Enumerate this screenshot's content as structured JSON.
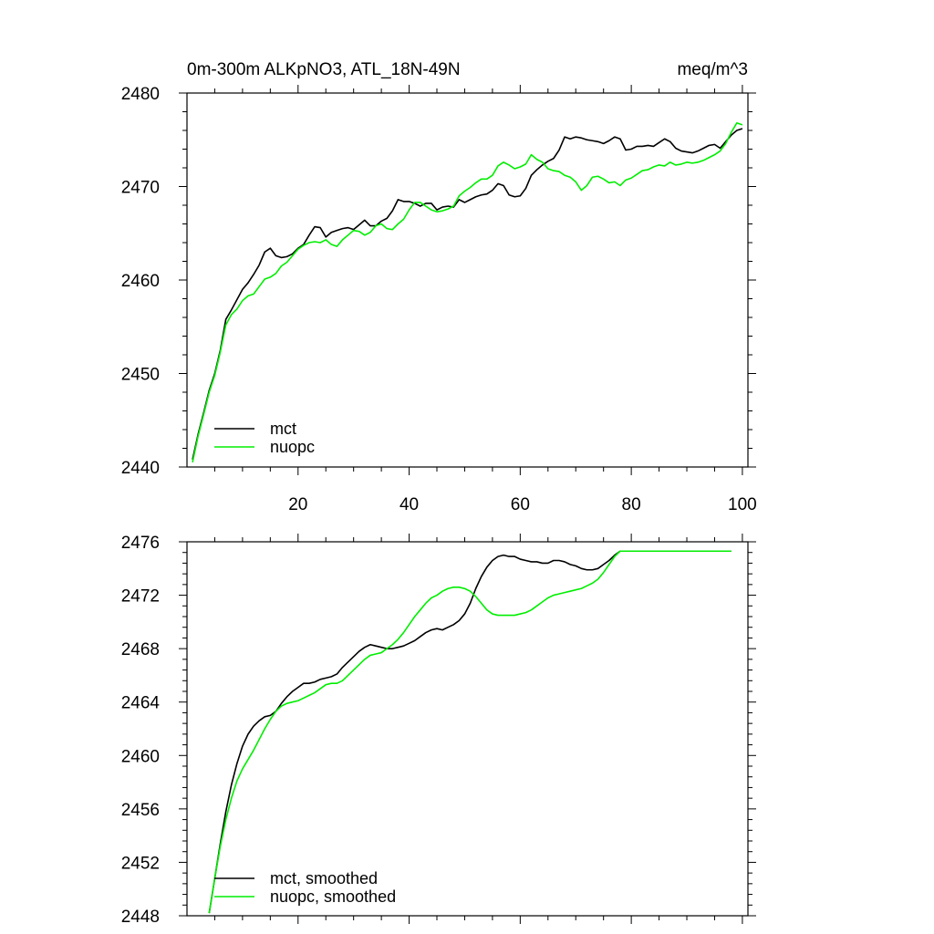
{
  "colors": {
    "mct": "#000000",
    "nuopc": "#00ee00"
  },
  "chart_data": [
    {
      "type": "line",
      "title": "0m-300m ALKpNO3, ATL_18N-49N",
      "units": "meq/m^3",
      "xlim": [
        0,
        101
      ],
      "ylim": [
        2440,
        2480
      ],
      "xticks": [
        20,
        40,
        60,
        80,
        100
      ],
      "xtick_labels": [
        "20",
        "40",
        "60",
        "80",
        "100"
      ],
      "yticks": [
        2440,
        2450,
        2460,
        2470,
        2480
      ],
      "ytick_labels": [
        "2440",
        "2450",
        "2460",
        "2470",
        "2480"
      ],
      "legend_position": "bottom-left",
      "grid": false,
      "x": [
        1,
        2,
        3,
        4,
        5,
        6,
        7,
        8,
        9,
        10,
        11,
        12,
        13,
        14,
        15,
        16,
        17,
        18,
        19,
        20,
        21,
        22,
        23,
        24,
        25,
        26,
        27,
        28,
        29,
        30,
        31,
        32,
        33,
        34,
        35,
        36,
        37,
        38,
        39,
        40,
        41,
        42,
        43,
        44,
        45,
        46,
        47,
        48,
        49,
        50,
        51,
        52,
        53,
        54,
        55,
        56,
        57,
        58,
        59,
        60,
        61,
        62,
        63,
        64,
        65,
        66,
        67,
        68,
        69,
        70,
        71,
        72,
        73,
        74,
        75,
        76,
        77,
        78,
        79,
        80,
        81,
        82,
        83,
        84,
        85,
        86,
        87,
        88,
        89,
        90,
        91,
        92,
        93,
        94,
        95,
        96,
        97,
        98,
        99,
        100
      ],
      "series": [
        {
          "name": "mct",
          "color": "#000000",
          "values": [
            2440.8,
            2443.5,
            2445.8,
            2448.2,
            2450.0,
            2452.5,
            2455.8,
            2456.8,
            2457.9,
            2459.0,
            2459.7,
            2460.6,
            2461.6,
            2463.0,
            2463.4,
            2462.6,
            2462.4,
            2462.5,
            2462.8,
            2463.4,
            2463.8,
            2464.8,
            2465.7,
            2465.6,
            2464.6,
            2465.1,
            2465.3,
            2465.5,
            2465.6,
            2465.4,
            2465.9,
            2466.4,
            2465.8,
            2465.8,
            2466.3,
            2466.6,
            2467.4,
            2468.6,
            2468.4,
            2468.4,
            2468.2,
            2467.9,
            2468.2,
            2468.2,
            2467.5,
            2467.8,
            2467.9,
            2467.8,
            2468.6,
            2468.3,
            2468.6,
            2468.9,
            2469.1,
            2469.2,
            2469.6,
            2470.3,
            2470.1,
            2469.1,
            2468.9,
            2469.0,
            2469.8,
            2471.2,
            2471.8,
            2472.3,
            2472.7,
            2473.0,
            2473.9,
            2475.3,
            2475.1,
            2475.3,
            2475.2,
            2475.0,
            2474.9,
            2474.8,
            2474.6,
            2474.9,
            2475.3,
            2475.1,
            2473.9,
            2474.0,
            2474.3,
            2474.3,
            2474.4,
            2474.3,
            2474.7,
            2475.1,
            2474.8,
            2474.1,
            2473.8,
            2473.7,
            2473.6,
            2473.8,
            2474.1,
            2474.4,
            2474.5,
            2474.1,
            2474.8,
            2475.5,
            2476.0,
            2476.2
          ]
        },
        {
          "name": "nuopc",
          "color": "#00ee00",
          "values": [
            2440.5,
            2443.3,
            2445.6,
            2448.0,
            2449.8,
            2452.3,
            2455.2,
            2456.3,
            2456.9,
            2457.8,
            2458.3,
            2458.5,
            2459.3,
            2460.1,
            2460.3,
            2460.7,
            2461.5,
            2461.9,
            2462.6,
            2463.3,
            2463.7,
            2464.0,
            2464.1,
            2464.0,
            2464.3,
            2463.8,
            2463.6,
            2464.3,
            2464.8,
            2465.3,
            2465.2,
            2464.8,
            2465.1,
            2465.8,
            2466.0,
            2465.5,
            2465.4,
            2466.0,
            2466.5,
            2467.5,
            2468.3,
            2468.3,
            2467.9,
            2467.5,
            2467.3,
            2467.4,
            2467.6,
            2467.9,
            2469.0,
            2469.5,
            2469.9,
            2470.4,
            2470.8,
            2470.8,
            2471.2,
            2472.2,
            2472.6,
            2472.3,
            2471.9,
            2472.1,
            2472.4,
            2473.4,
            2472.9,
            2472.6,
            2471.9,
            2471.7,
            2471.6,
            2471.2,
            2471.0,
            2470.5,
            2469.6,
            2470.1,
            2471.0,
            2471.1,
            2470.8,
            2470.4,
            2470.5,
            2470.1,
            2470.7,
            2470.9,
            2471.3,
            2471.7,
            2471.8,
            2472.1,
            2472.3,
            2472.2,
            2472.6,
            2472.3,
            2472.4,
            2472.6,
            2472.5,
            2472.6,
            2472.8,
            2473.1,
            2473.4,
            2473.8,
            2474.6,
            2475.8,
            2476.8,
            2476.6
          ]
        }
      ]
    },
    {
      "type": "line",
      "title": "",
      "xlim": [
        0,
        101
      ],
      "ylim": [
        2448,
        2476
      ],
      "xticks": [
        20,
        40,
        60,
        80,
        100
      ],
      "yticks": [
        2448,
        2452,
        2456,
        2460,
        2464,
        2468,
        2472,
        2476
      ],
      "ytick_labels": [
        "2448",
        "2452",
        "2456",
        "2460",
        "2464",
        "2468",
        "2472",
        "2476"
      ],
      "legend_position": "bottom-left",
      "grid": false,
      "x": [
        4,
        5,
        6,
        7,
        8,
        9,
        10,
        11,
        12,
        13,
        14,
        15,
        16,
        17,
        18,
        19,
        20,
        21,
        22,
        23,
        24,
        25,
        26,
        27,
        28,
        29,
        30,
        31,
        32,
        33,
        34,
        35,
        36,
        37,
        38,
        39,
        40,
        41,
        42,
        43,
        44,
        45,
        46,
        47,
        48,
        49,
        50,
        51,
        52,
        53,
        54,
        55,
        56,
        57,
        58,
        59,
        60,
        61,
        62,
        63,
        64,
        65,
        66,
        67,
        68,
        69,
        70,
        71,
        72,
        73,
        74,
        75,
        76,
        77,
        78,
        79,
        80,
        81,
        82,
        83,
        84,
        85,
        86,
        87,
        88,
        89,
        90,
        91,
        92,
        93,
        94,
        95,
        96,
        97,
        98
      ],
      "series": [
        {
          "name": "mct, smoothed",
          "color": "#000000",
          "values": [
            2448.2,
            2450.8,
            2453.4,
            2455.8,
            2457.8,
            2459.4,
            2460.7,
            2461.6,
            2462.2,
            2462.6,
            2462.9,
            2463.0,
            2463.3,
            2463.9,
            2464.4,
            2464.8,
            2465.1,
            2465.4,
            2465.4,
            2465.5,
            2465.7,
            2465.8,
            2465.9,
            2466.1,
            2466.6,
            2467.0,
            2467.4,
            2467.8,
            2468.1,
            2468.3,
            2468.2,
            2468.1,
            2468.0,
            2468.0,
            2468.1,
            2468.2,
            2468.4,
            2468.6,
            2468.9,
            2469.2,
            2469.4,
            2469.5,
            2469.4,
            2469.6,
            2469.8,
            2470.1,
            2470.6,
            2471.4,
            2472.5,
            2473.4,
            2474.1,
            2474.6,
            2474.9,
            2475.0,
            2474.9,
            2474.9,
            2474.7,
            2474.6,
            2474.5,
            2474.5,
            2474.4,
            2474.4,
            2474.6,
            2474.6,
            2474.5,
            2474.3,
            2474.2,
            2474.0,
            2473.9,
            2473.9,
            2474.0,
            2474.3,
            2474.6,
            2475.0,
            2475.3,
            2475.3,
            2475.3,
            2475.3,
            2475.3,
            2475.3,
            2475.3,
            2475.3,
            2475.3,
            2475.3,
            2475.3,
            2475.3,
            2475.3,
            2475.3,
            2475.3,
            2475.3,
            2475.3,
            2475.3,
            2475.3,
            2475.3,
            2475.3
          ]
        },
        {
          "name": "nuopc, smoothed",
          "color": "#00ee00",
          "values": [
            2448.2,
            2450.8,
            2453.2,
            2455.2,
            2456.8,
            2458.1,
            2459.0,
            2459.7,
            2460.4,
            2461.2,
            2462.0,
            2462.7,
            2463.3,
            2463.7,
            2463.9,
            2464.0,
            2464.1,
            2464.3,
            2464.5,
            2464.7,
            2465.0,
            2465.3,
            2465.4,
            2465.4,
            2465.6,
            2466.0,
            2466.4,
            2466.8,
            2467.2,
            2467.5,
            2467.6,
            2467.7,
            2468.0,
            2468.3,
            2468.7,
            2469.2,
            2469.8,
            2470.4,
            2470.9,
            2471.4,
            2471.8,
            2472.0,
            2472.3,
            2472.5,
            2472.6,
            2472.6,
            2472.5,
            2472.3,
            2471.9,
            2471.4,
            2470.9,
            2470.6,
            2470.5,
            2470.5,
            2470.5,
            2470.5,
            2470.6,
            2470.7,
            2470.9,
            2471.2,
            2471.5,
            2471.8,
            2472.0,
            2472.1,
            2472.2,
            2472.3,
            2472.4,
            2472.5,
            2472.7,
            2472.9,
            2473.2,
            2473.7,
            2474.3,
            2474.9,
            2475.3,
            2475.3,
            2475.3,
            2475.3,
            2475.3,
            2475.3,
            2475.3,
            2475.3,
            2475.3,
            2475.3,
            2475.3,
            2475.3,
            2475.3,
            2475.3,
            2475.3,
            2475.3,
            2475.3,
            2475.3,
            2475.3,
            2475.3,
            2475.3
          ]
        }
      ]
    }
  ]
}
